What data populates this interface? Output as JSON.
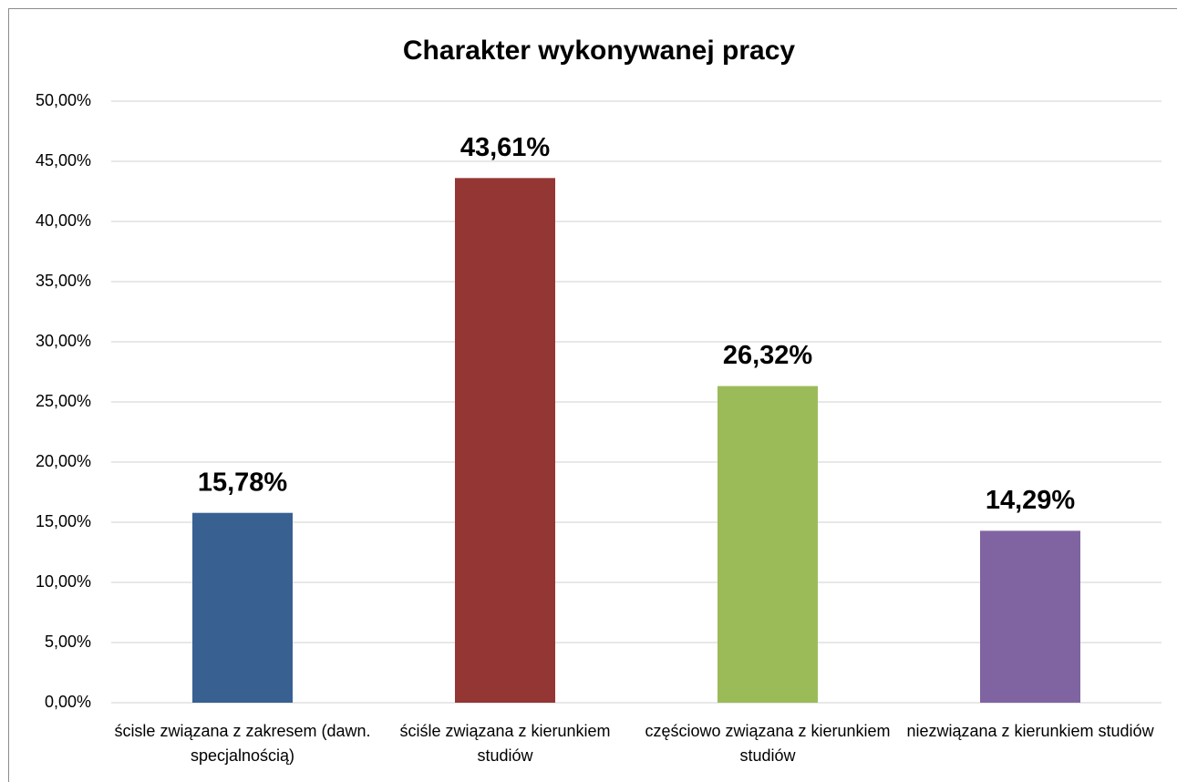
{
  "chart_data": {
    "type": "bar",
    "title": "Charakter wykonywanej pracy",
    "categories": [
      "ścisle związana z zakresem (dawn. specjalnością)",
      "ściśle związana z kierunkiem studiów",
      "częściowo związana z kierunkiem studiów",
      "niezwiązana z kierunkiem studiów"
    ],
    "values": [
      15.78,
      43.61,
      26.32,
      14.29
    ],
    "value_labels": [
      "15,78%",
      "43,61%",
      "26,32%",
      "14,29%"
    ],
    "colors": [
      "#386192",
      "#943634",
      "#9bbb59",
      "#8064a2"
    ],
    "ylim": [
      0,
      50
    ],
    "yticks": [
      {
        "value": 0,
        "label": "0,00%"
      },
      {
        "value": 5,
        "label": "5,00%"
      },
      {
        "value": 10,
        "label": "10,00%"
      },
      {
        "value": 15,
        "label": "15,00%"
      },
      {
        "value": 20,
        "label": "20,00%"
      },
      {
        "value": 25,
        "label": "25,00%"
      },
      {
        "value": 30,
        "label": "30,00%"
      },
      {
        "value": 35,
        "label": "35,00%"
      },
      {
        "value": 40,
        "label": "40,00%"
      },
      {
        "value": 45,
        "label": "45,00%"
      },
      {
        "value": 50,
        "label": "50,00%"
      }
    ],
    "grid": true
  }
}
